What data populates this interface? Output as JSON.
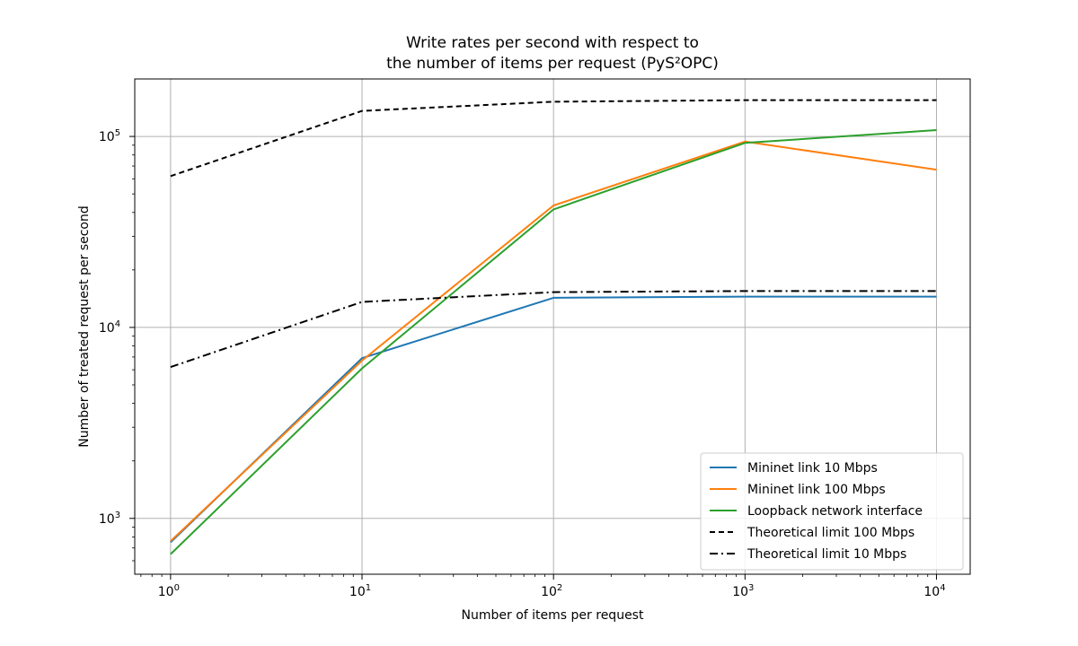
{
  "chart_data": {
    "type": "line",
    "title_line1": "Write rates per second with respect to",
    "title_line2": "the number of items per request (PyS²OPC)",
    "xlabel": "Number of items per request",
    "ylabel": "Number of treated request per second",
    "x_scale": "log",
    "y_scale": "log",
    "xlim": [
      0.65,
      15000
    ],
    "ylim": [
      510,
      200000
    ],
    "grid": true,
    "legend_position": "lower right",
    "x_ticks": [
      {
        "value": 1,
        "base": "10",
        "exp": "0"
      },
      {
        "value": 10,
        "base": "10",
        "exp": "1"
      },
      {
        "value": 100,
        "base": "10",
        "exp": "2"
      },
      {
        "value": 1000,
        "base": "10",
        "exp": "3"
      },
      {
        "value": 10000,
        "base": "10",
        "exp": "4"
      }
    ],
    "y_ticks": [
      {
        "value": 1000,
        "base": "10",
        "exp": "3"
      },
      {
        "value": 10000,
        "base": "10",
        "exp": "4"
      },
      {
        "value": 100000,
        "base": "10",
        "exp": "5"
      }
    ],
    "x": [
      1,
      10,
      100,
      1000,
      10000
    ],
    "series": [
      {
        "name": "Mininet link 10 Mbps",
        "color": "#1f77b4",
        "dash": "solid",
        "values": [
          750,
          6900,
          14300,
          14500,
          14500
        ]
      },
      {
        "name": "Mininet link 100 Mbps",
        "color": "#ff7f0e",
        "dash": "solid",
        "values": [
          760,
          6700,
          43500,
          94000,
          67000
        ]
      },
      {
        "name": "Loopback network interface",
        "color": "#2ca02c",
        "dash": "solid",
        "values": [
          650,
          6100,
          41500,
          92500,
          108000
        ]
      },
      {
        "name": "Theoretical limit 100 Mbps",
        "color": "#000000",
        "dash": "dashed",
        "values": [
          62000,
          136000,
          152000,
          155000,
          155000
        ]
      },
      {
        "name": "Theoretical limit 10 Mbps",
        "color": "#000000",
        "dash": "dashdot",
        "values": [
          6200,
          13600,
          15300,
          15500,
          15500
        ]
      }
    ]
  }
}
